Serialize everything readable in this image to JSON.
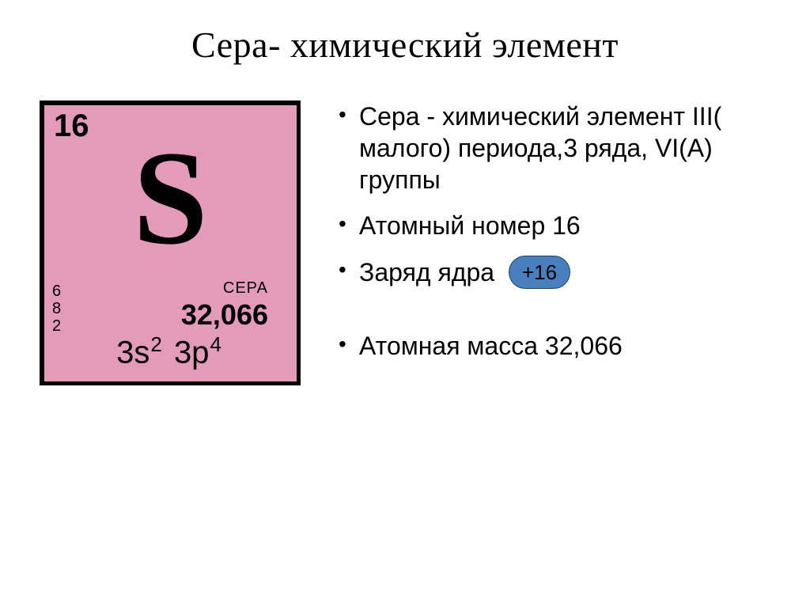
{
  "title": "Сера- химический элемент",
  "tile": {
    "background_color": "#e49bba",
    "border_color": "#000000",
    "atomic_number": "16",
    "symbol": "S",
    "electron_shells": [
      "6",
      "8",
      "2"
    ],
    "name": "СЕРА",
    "atomic_mass": "32,066",
    "configuration": {
      "a": "3s",
      "a_sup": "2",
      "b": "3p",
      "b_sup": "4"
    },
    "text_color": "#000000"
  },
  "bullets": {
    "item1": "Сера - химический элемент III( малого) периода,3 ряда, VI(А) группы",
    "item2": "Атомный номер 16",
    "item3_label": "Заряд ядра",
    "item3_charge": "+16",
    "item4": "Атомная масса 32,066",
    "font_size": 32,
    "text_color": "#000000"
  },
  "badge": {
    "background_color": "#4a7fbf",
    "border_color": "#24445f",
    "text_color": "#000000"
  }
}
